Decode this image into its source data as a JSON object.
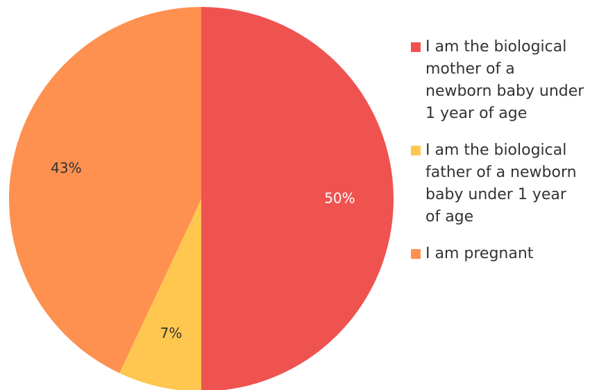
{
  "chart_data": {
    "type": "pie",
    "categories": [
      "I am the biological mother of a newborn baby under 1 year of age",
      "I am the biological father of a newborn baby under 1 year of age",
      "I am pregnant"
    ],
    "values": [
      50,
      7,
      43
    ],
    "value_labels": [
      "50%",
      "7%",
      "43%"
    ],
    "colors": [
      "#ef5350",
      "#ffc74f",
      "#fe9150"
    ],
    "legend": "right"
  }
}
